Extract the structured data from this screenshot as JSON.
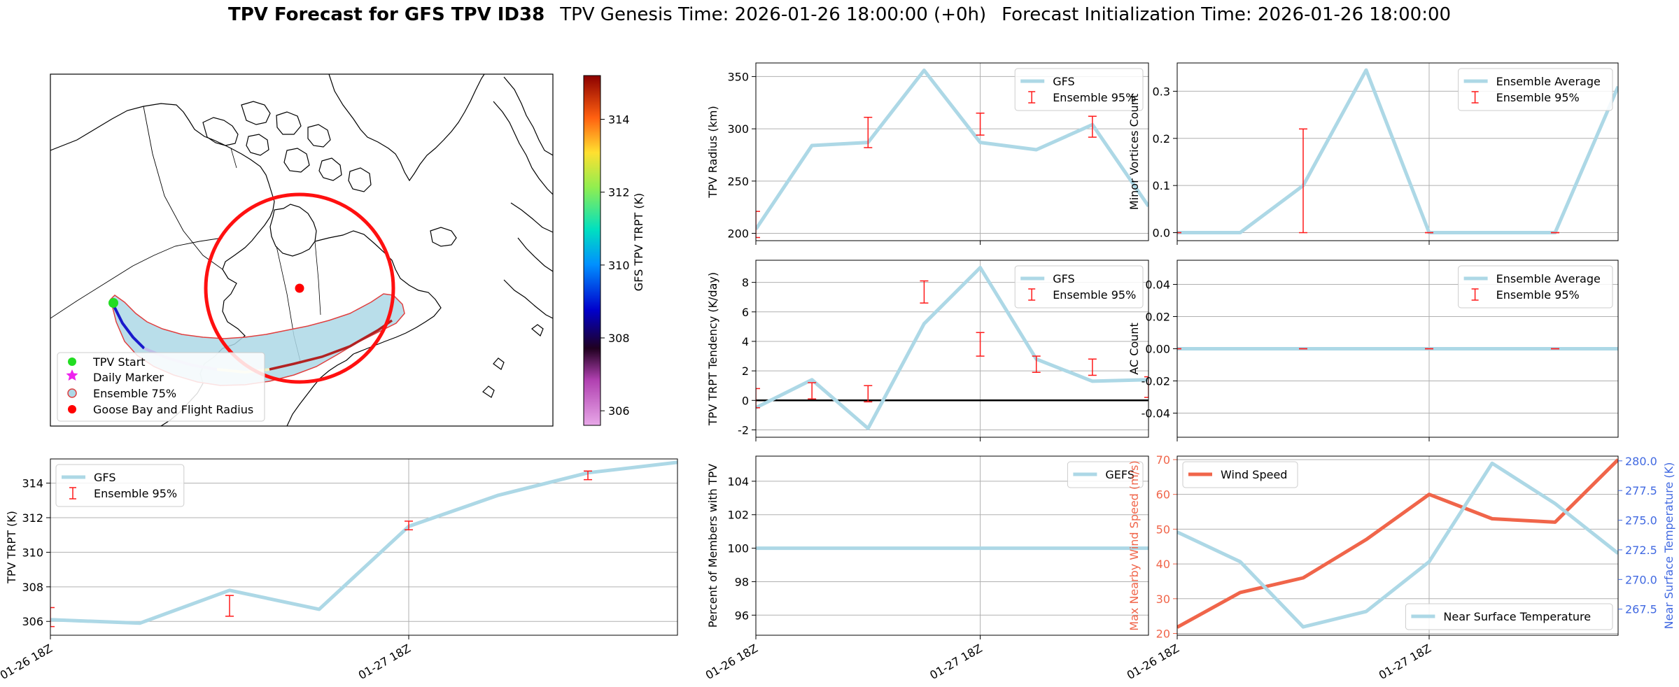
{
  "title": {
    "bold": "TPV Forecast for GFS TPV ID38",
    "genesis": "TPV Genesis Time: 2026-01-26 18:00:00 (+0h)",
    "init": "Forecast Initialization Time: 2026-01-26 18:00:00"
  },
  "map": {
    "legend": [
      "TPV Start",
      "Daily Marker",
      "Ensemble 75%",
      "Goose Bay and Flight Radius"
    ],
    "colorbar": {
      "label": "GFS TPV TRPT (K)",
      "ticks": [
        306,
        308,
        310,
        312,
        314
      ],
      "range": [
        305.6,
        315.2
      ]
    },
    "colors": {
      "start": "#22dd22",
      "daily": "#ee22ee",
      "ensemble_fill": "#add8e6",
      "goose": "#ff0000"
    }
  },
  "time_labels": [
    "01-26 18Z",
    "01-27 18Z"
  ],
  "chart_data": [
    {
      "id": "trpt",
      "type": "line",
      "ylabel": "TPV TRPT (K)",
      "xlim": [
        0,
        7
      ],
      "ylim": [
        305.2,
        315.4
      ],
      "yticks": [
        306,
        308,
        310,
        312,
        314
      ],
      "xgrid": [
        4
      ],
      "ygrid": true,
      "x": [
        0,
        1,
        2,
        3,
        4,
        5,
        6,
        7
      ],
      "series": [
        {
          "name": "GFS",
          "values": [
            306.1,
            305.9,
            307.8,
            306.7,
            311.5,
            313.3,
            314.6,
            315.2
          ]
        }
      ],
      "errorbars": {
        "name": "Ensemble 95%",
        "x": [
          0,
          2,
          4,
          6
        ],
        "low": [
          305.7,
          306.3,
          311.3,
          314.2
        ],
        "high": [
          306.8,
          307.5,
          311.8,
          314.7
        ]
      },
      "legend": [
        "GFS",
        "Ensemble 95%"
      ],
      "legend_loc": "upper-left"
    },
    {
      "id": "radius",
      "type": "line",
      "ylabel": "TPV Radius (km)",
      "xlim": [
        0,
        7
      ],
      "ylim": [
        193,
        363
      ],
      "yticks": [
        200,
        250,
        300,
        350
      ],
      "xgrid": [
        4
      ],
      "ygrid": true,
      "x": [
        0,
        1,
        2,
        3,
        4,
        5,
        6,
        7
      ],
      "series": [
        {
          "name": "GFS",
          "values": [
            204,
            284,
            287,
            356,
            287,
            280,
            304,
            226
          ]
        }
      ],
      "errorbars": {
        "name": "Ensemble 95%",
        "x": [
          0,
          2,
          4,
          6
        ],
        "low": [
          196,
          282,
          294,
          292
        ],
        "high": [
          221,
          311,
          315,
          312
        ]
      },
      "legend": [
        "GFS",
        "Ensemble 95%"
      ],
      "legend_loc": "upper-right"
    },
    {
      "id": "tendency",
      "type": "line",
      "ylabel": "TPV TRPT Tendency (K/day)",
      "xlim": [
        0,
        7
      ],
      "ylim": [
        -2.5,
        9.5
      ],
      "yticks": [
        -2,
        0,
        2,
        4,
        6,
        8
      ],
      "xgrid": [
        4
      ],
      "ygrid": true,
      "zero_line": true,
      "x": [
        0,
        1,
        2,
        3,
        4,
        5,
        6,
        7
      ],
      "series": [
        {
          "name": "GFS",
          "values": [
            -0.5,
            1.4,
            -1.9,
            5.2,
            9.0,
            2.8,
            1.3,
            1.4
          ]
        }
      ],
      "errorbars": {
        "name": "Ensemble 95%",
        "x": [
          0,
          1,
          2,
          3,
          4,
          5,
          6,
          7
        ],
        "low": [
          -0.5,
          0.1,
          -0.1,
          6.6,
          3.0,
          1.9,
          1.7,
          0.2
        ],
        "high": [
          0.8,
          1.2,
          1.0,
          8.1,
          4.6,
          3.0,
          2.8,
          1.6
        ]
      },
      "legend": [
        "GFS",
        "Ensemble 95%"
      ],
      "legend_loc": "upper-right"
    },
    {
      "id": "percent",
      "type": "line",
      "ylabel": "Percent of Members with TPV",
      "xlim": [
        0,
        7
      ],
      "ylim": [
        94.8,
        105.5
      ],
      "yticks": [
        96,
        98,
        100,
        102,
        104
      ],
      "xgrid": [
        4
      ],
      "ygrid": true,
      "x": [
        0,
        1,
        2,
        3,
        4,
        5,
        6,
        7
      ],
      "series": [
        {
          "name": "GEFS",
          "values": [
            100,
            100,
            100,
            100,
            100,
            100,
            100,
            100
          ]
        }
      ],
      "legend": [
        "GEFS"
      ],
      "legend_loc": "upper-right"
    },
    {
      "id": "minor",
      "type": "line",
      "ylabel": "Minor Vortices Count",
      "xlim": [
        0,
        7
      ],
      "ylim": [
        -0.017,
        0.36
      ],
      "yticks": [
        0.0,
        0.1,
        0.2,
        0.3
      ],
      "xgrid": [
        4
      ],
      "ygrid": true,
      "x": [
        0,
        1,
        2,
        3,
        4,
        5,
        6,
        7
      ],
      "series": [
        {
          "name": "Ensemble Average",
          "values": [
            0,
            0,
            0.1,
            0.345,
            0,
            0,
            0,
            0.31
          ]
        }
      ],
      "errorbars": {
        "name": "Ensemble 95%",
        "x": [
          0,
          2,
          4,
          6
        ],
        "low": [
          0,
          0,
          0,
          0
        ],
        "high": [
          0,
          0.22,
          0,
          0
        ]
      },
      "legend": [
        "Ensemble Average",
        "Ensemble 95%"
      ],
      "legend_loc": "upper-right"
    },
    {
      "id": "ac",
      "type": "line",
      "ylabel": "AC Count",
      "xlim": [
        0,
        7
      ],
      "ylim": [
        -0.055,
        0.055
      ],
      "yticks": [
        -0.04,
        -0.02,
        0.0,
        0.02,
        0.04
      ],
      "xgrid": [
        4
      ],
      "ygrid": true,
      "x": [
        0,
        1,
        2,
        3,
        4,
        5,
        6,
        7
      ],
      "series": [
        {
          "name": "Ensemble Average",
          "values": [
            0,
            0,
            0,
            0,
            0,
            0,
            0,
            0
          ]
        }
      ],
      "errorbars": {
        "name": "Ensemble 95%",
        "x": [
          0,
          2,
          4,
          6
        ],
        "low": [
          0,
          0,
          0,
          0
        ],
        "high": [
          0,
          0,
          0,
          0
        ]
      },
      "legend": [
        "Ensemble Average",
        "Ensemble 95%"
      ],
      "legend_loc": "upper-right"
    },
    {
      "id": "wind",
      "type": "line",
      "xlim": [
        0,
        7
      ],
      "ylabel": "Max Nearby Wind Speed (m/s)",
      "ylim": [
        19.5,
        71
      ],
      "yticks": [
        20,
        30,
        40,
        50,
        60,
        70
      ],
      "ylabel2": "Near Surface Temperature (K)",
      "ylim2": [
        265.3,
        280.4
      ],
      "yticks2": [
        267.5,
        270.0,
        272.5,
        275.0,
        277.5,
        280.0
      ],
      "xgrid": [
        4
      ],
      "ygrid": true,
      "x": [
        0,
        1,
        2,
        3,
        4,
        5,
        6,
        7
      ],
      "series": [
        {
          "name": "Wind Speed",
          "axis": "left",
          "values": [
            21.8,
            31.8,
            36.0,
            47.0,
            60.0,
            53.0,
            52.0,
            70.0
          ]
        },
        {
          "name": "Near Surface Temperature",
          "axis": "right",
          "values": [
            274.0,
            271.5,
            266.0,
            267.3,
            271.5,
            279.8,
            276.4,
            272.2
          ]
        }
      ],
      "legend": [
        "Wind Speed"
      ],
      "legend2": [
        "Near Surface Temperature"
      ]
    }
  ]
}
